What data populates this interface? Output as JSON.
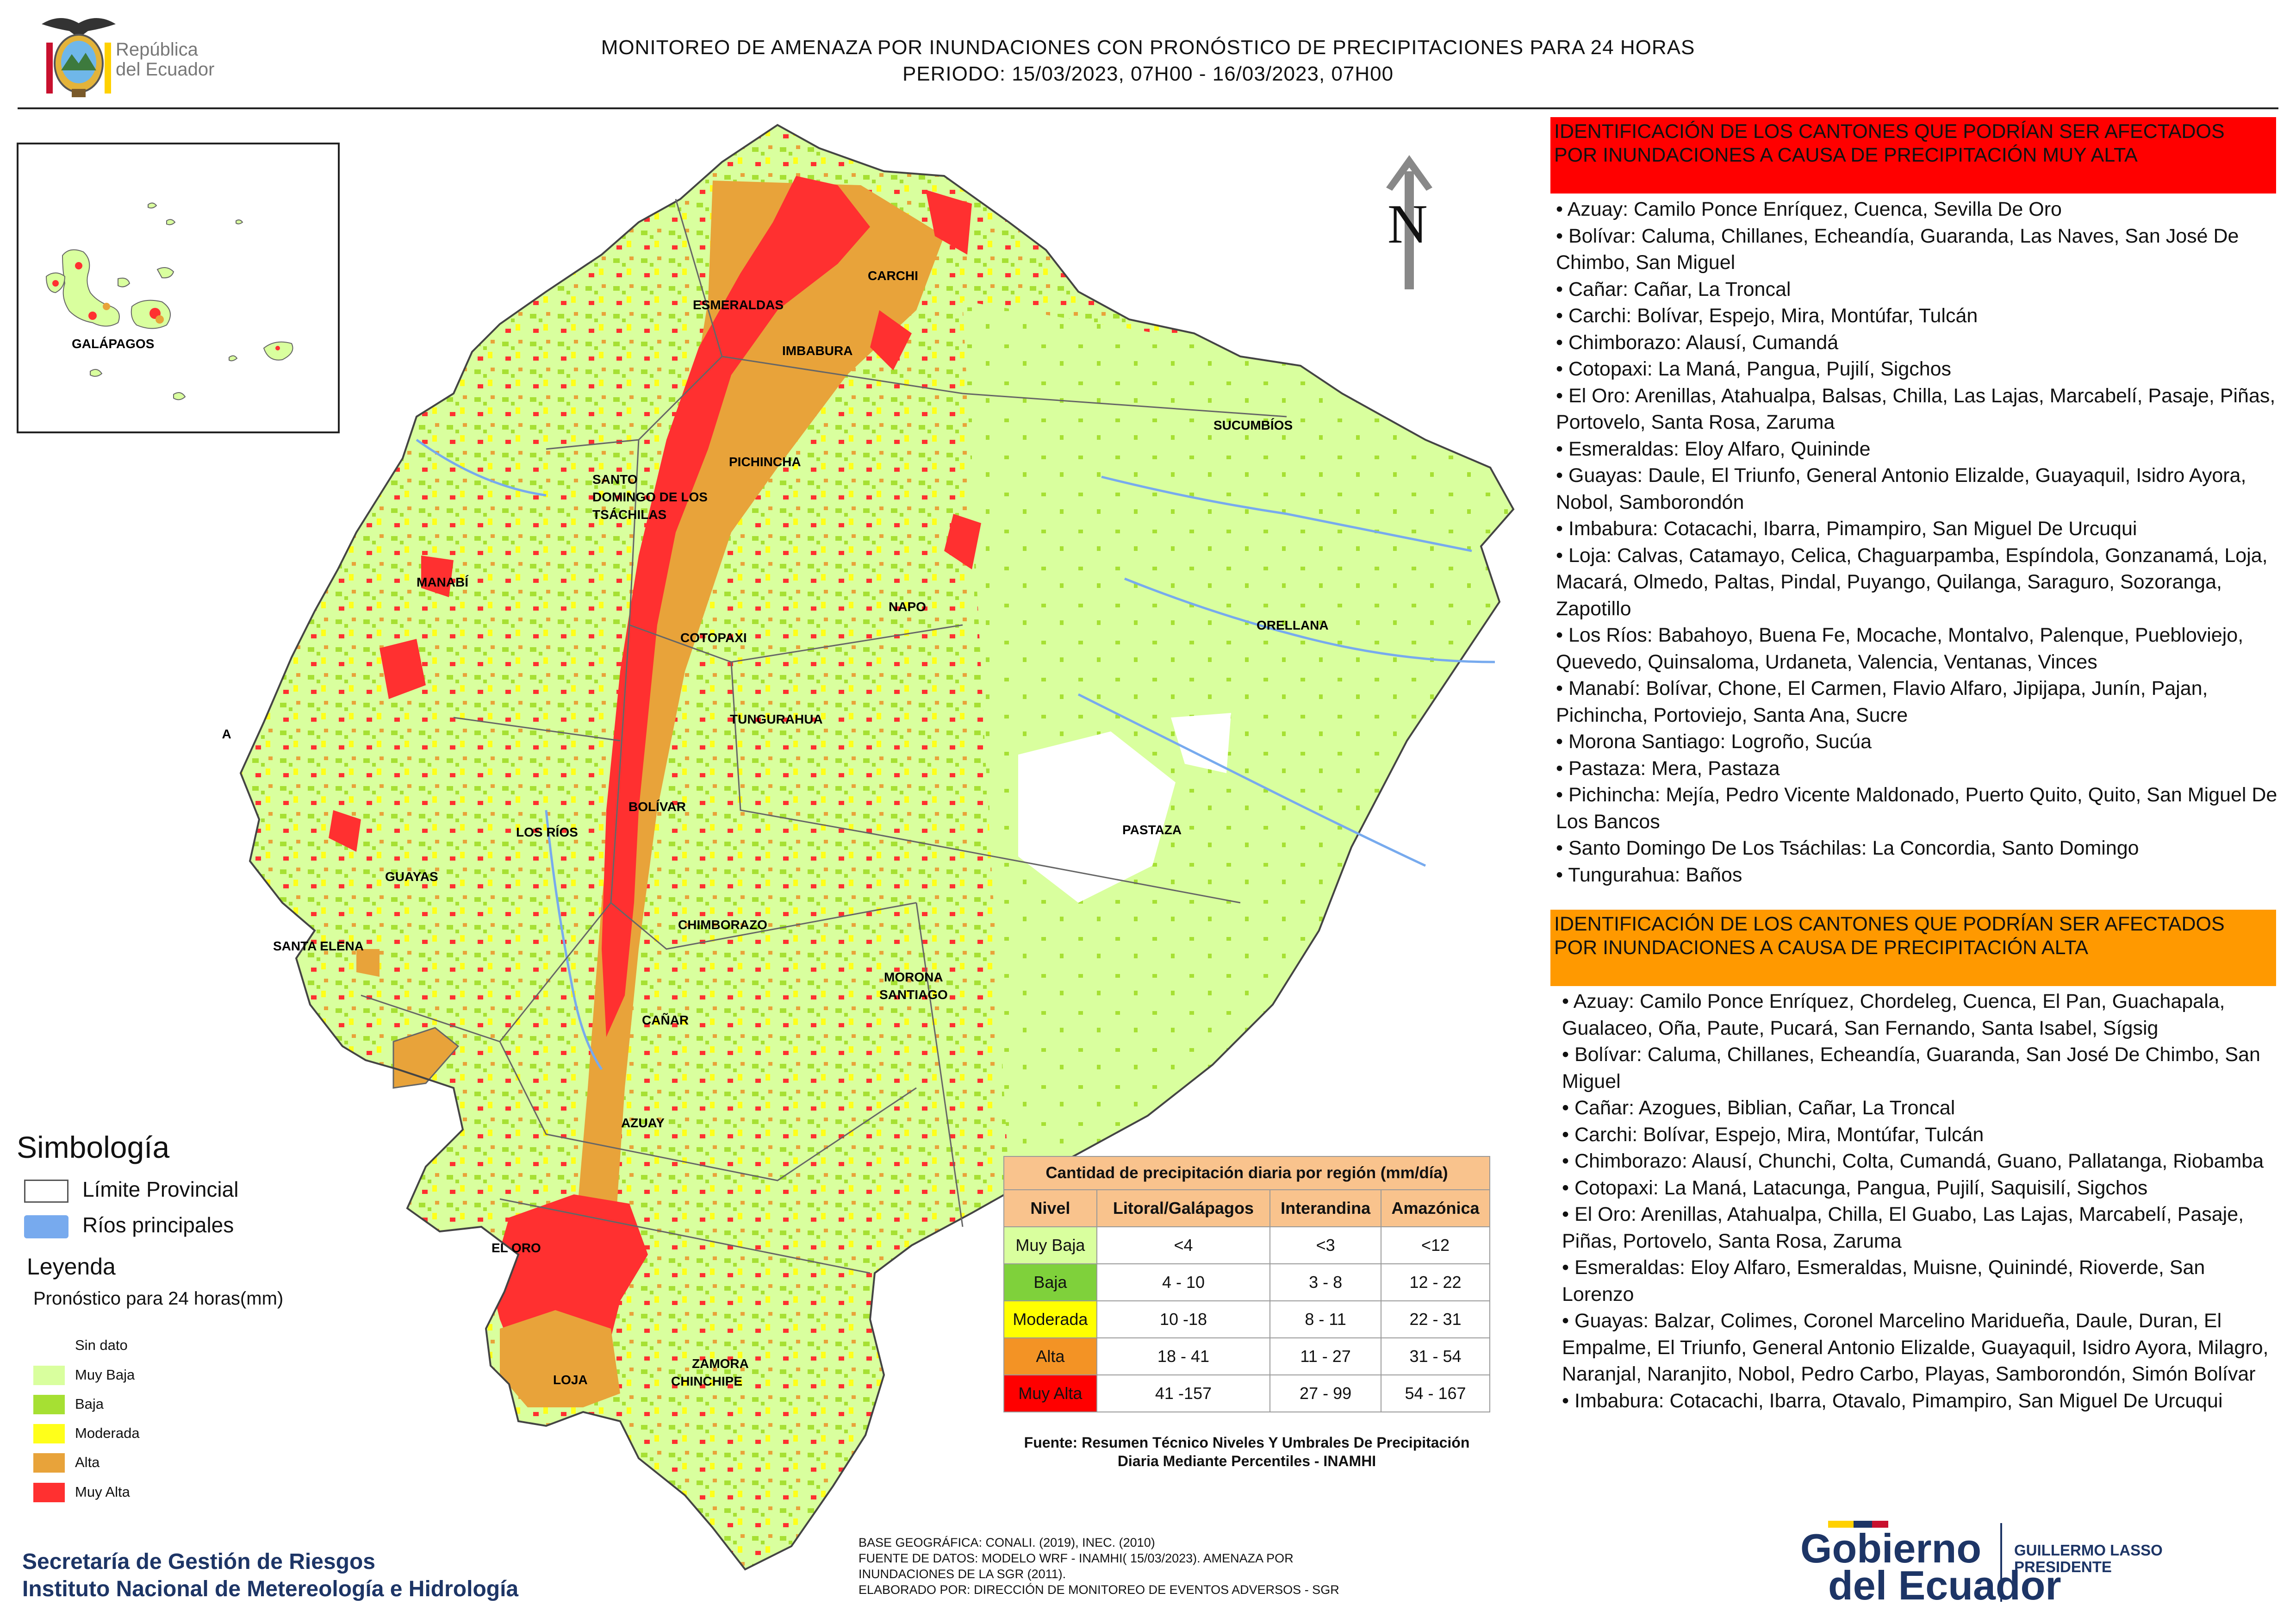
{
  "header": {
    "title_line1": "MONITOREO DE AMENAZA POR INUNDACIONES  CON PRONÓSTICO DE  PRECIPITACIONES PARA 24 HORAS",
    "title_line2": "PERIODO: 15/03/2023, 07H00 - 16/03/2023, 07H00",
    "republica_line1": "República",
    "republica_line2": "del Ecuador"
  },
  "map": {
    "north_label": "N",
    "inset_label": "GALÁPAGOS",
    "isla_label": "ISLA",
    "provinces": [
      "CARCHI",
      "ESMERALDAS",
      "IMBABURA",
      "SUCUMBÍOS",
      "PICHINCHA",
      "SANTO DOMINGO DE LOS TSÁCHILAS",
      "MANABÍ",
      "NAPO",
      "ORELLANA",
      "COTOPAXI",
      "TUNGURAHUA",
      "BOLÍVAR",
      "LOS RÍOS",
      "PASTAZA",
      "GUAYAS",
      "SANTA ELENA",
      "CHIMBORAZO",
      "MORONA SANTIAGO",
      "CAÑAR",
      "AZUAY",
      "EL ORO",
      "LOJA",
      "ZAMORA CHINCHIPE"
    ]
  },
  "panel_muy_alta": {
    "header": "IDENTIFICACIÓN DE LOS CANTONES QUE PODRÍAN SER AFECTADOS POR INUNDACIONES  A CAUSA DE PRECIPITACIÓN MUY ALTA",
    "items": [
      "• Azuay: Camilo Ponce Enríquez, Cuenca, Sevilla De Oro",
      "• Bolívar: Caluma, Chillanes, Echeandía, Guaranda, Las Naves, San José De Chimbo, San Miguel",
      "• Cañar: Cañar, La Troncal",
      "• Carchi: Bolívar, Espejo, Mira, Montúfar, Tulcán",
      "• Chimborazo: Alausí, Cumandá",
      "• Cotopaxi: La Maná, Pangua, Pujilí, Sigchos",
      "• El Oro: Arenillas, Atahualpa, Balsas, Chilla, Las Lajas, Marcabelí, Pasaje, Piñas, Portovelo, Santa Rosa, Zaruma",
      "• Esmeraldas: Eloy Alfaro, Quininde",
      "• Guayas: Daule, El Triunfo, General Antonio Elizalde, Guayaquil, Isidro Ayora, Nobol, Samborondón",
      "• Imbabura: Cotacachi, Ibarra, Pimampiro, San Miguel De Urcuqui",
      "• Loja: Calvas, Catamayo, Celica, Chaguarpamba, Espíndola, Gonzanamá, Loja, Macará, Olmedo, Paltas, Pindal, Puyango, Quilanga, Saraguro, Sozoranga, Zapotillo",
      "• Los Ríos: Babahoyo, Buena Fe, Mocache, Montalvo, Palenque, Puebloviejo, Quevedo, Quinsaloma, Urdaneta, Valencia, Ventanas, Vinces",
      "• Manabí: Bolívar, Chone, El Carmen, Flavio Alfaro, Jipijapa, Junín, Pajan, Pichincha, Portoviejo, Santa Ana, Sucre",
      "• Morona Santiago: Logroño, Sucúa",
      "• Pastaza: Mera, Pastaza",
      "• Pichincha: Mejía, Pedro Vicente Maldonado, Puerto Quito, Quito, San Miguel De Los Bancos",
      "• Santo Domingo De Los Tsáchilas: La Concordia, Santo Domingo",
      "• Tungurahua: Baños"
    ]
  },
  "panel_alta": {
    "header": "IDENTIFICACIÓN DE LOS CANTONES QUE  PODRÍAN SER AFECTADOS POR INUNDACIONES  A CAUSA DE PRECIPITACIÓN ALTA",
    "items": [
      "• Azuay: Camilo Ponce Enríquez, Chordeleg, Cuenca, El Pan, Guachapala, Gualaceo, Oña, Paute, Pucará, San Fernando, Santa Isabel, Sígsig",
      "• Bolívar: Caluma, Chillanes, Echeandía, Guaranda, San José De Chimbo, San Miguel",
      "• Cañar: Azogues, Biblian, Cañar, La Troncal",
      "• Carchi: Bolívar, Espejo, Mira, Montúfar, Tulcán",
      "• Chimborazo: Alausí, Chunchi, Colta, Cumandá, Guano, Pallatanga, Riobamba",
      "• Cotopaxi: La Maná, Latacunga, Pangua, Pujilí, Saquisilí, Sigchos",
      "• El Oro: Arenillas, Atahualpa, Chilla, El Guabo, Las Lajas, Marcabelí, Pasaje, Piñas, Portovelo, Santa Rosa, Zaruma",
      "• Esmeraldas: Eloy Alfaro, Esmeraldas, Muisne, Quinindé, Rioverde, San Lorenzo",
      "• Guayas: Balzar, Colimes, Coronel Marcelino Maridueña, Daule, Duran, El Empalme, El Triunfo, General Antonio Elizalde, Guayaquil, Isidro Ayora, Milagro, Naranjal, Naranjito, Nobol, Pedro Carbo, Playas, Samborondón, Simón Bolívar",
      "• Imbabura: Cotacachi, Ibarra, Otavalo, Pimampiro, San Miguel De Urcuqui"
    ]
  },
  "legend": {
    "simbologia": "Simbología",
    "limite": "Límite Provincial",
    "rios": "Ríos principales",
    "leyenda": "Leyenda",
    "pronostico": "Pronóstico para 24 horas(mm)",
    "items": [
      {
        "label": "Sin dato",
        "color": "#ffffff"
      },
      {
        "label": " Muy Baja",
        "color": "#d9ff9e"
      },
      {
        "label": "Baja",
        "color": "#a6e033"
      },
      {
        "label": "Moderada",
        "color": "#ffff1a"
      },
      {
        "label": "Alta",
        "color": "#e8a33a"
      },
      {
        "label": "Muy Alta",
        "color": "#ff3030"
      }
    ]
  },
  "table": {
    "caption": "Cantidad de precipitación diaria por región (mm/día)",
    "headers": [
      "Nivel",
      "Litoral/Galápagos",
      "Interandina",
      "Amazónica"
    ],
    "rows": [
      {
        "level": "Muy Baja",
        "color": "#d9ff9e",
        "cells": [
          "<4",
          "<3",
          "<12"
        ]
      },
      {
        "level": "Baja",
        "color": "#7fd13b",
        "cells": [
          "4 - 10",
          "3 - 8",
          "12 - 22"
        ]
      },
      {
        "level": "Moderada",
        "color": "#ffff00",
        "cells": [
          "10 -18",
          "8 - 11",
          "22 - 31"
        ]
      },
      {
        "level": "Alta",
        "color": "#f39325",
        "cells": [
          "18 - 41",
          "11 - 27",
          "31 - 54"
        ]
      },
      {
        "level": "Muy Alta",
        "color": "#ff0000",
        "cells": [
          "41 -157",
          "27 - 99",
          "54 - 167"
        ]
      }
    ],
    "source": "Fuente: Resumen Técnico Niveles Y Umbrales De Precipitación Diaria Mediante Percentiles - INAMHI"
  },
  "footer": {
    "base_lines": [
      "BASE GEOGRÁFICA: CONALI. (2019), INEC. (2010)",
      "FUENTE DE DATOS: MODELO WRF - INAMHI( 15/03/2023).  AMENAZA POR",
      "INUNDACIONES DE LA SGR  (2011).",
      "ELABORADO POR: DIRECCIÓN DE MONITOREO DE EVENTOS ADVERSOS - SGR"
    ],
    "org_line1": "Secretaría de Gestión de Riesgos",
    "org_line2": "Instituto Nacional de Metereología e Hidrología",
    "gobierno_line1": "Gobierno",
    "gobierno_line2": "del Ecuador",
    "president_line1": "GUILLERMO LASSO",
    "president_line2": "PRESIDENTE"
  }
}
